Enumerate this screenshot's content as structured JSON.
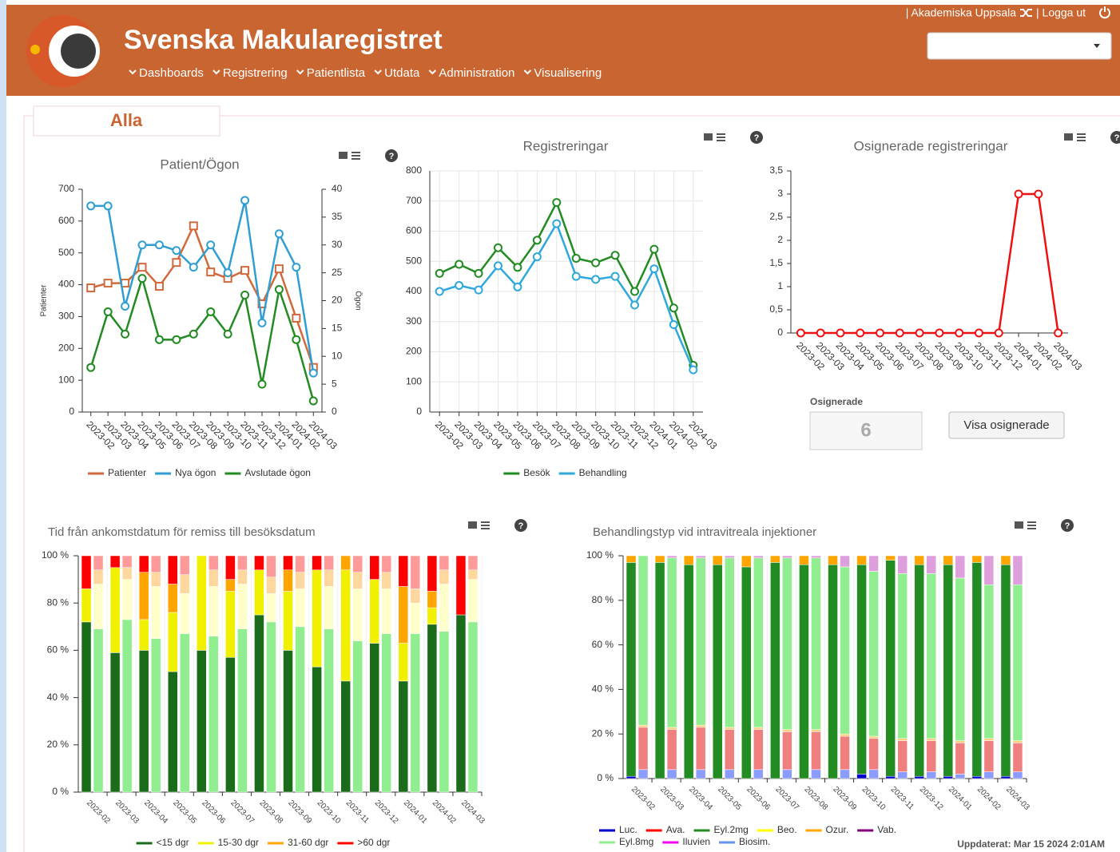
{
  "header": {
    "title": "Svenska Makularegistret",
    "org": "| Akademiska Uppsala",
    "logout": "| Logga ut",
    "nav": [
      "Dashboards",
      "Registrering",
      "Patientlista",
      "Utdata",
      "Administration",
      "Visualisering"
    ]
  },
  "panel": {
    "title": "Alla"
  },
  "help_icon": "?",
  "osignerade": {
    "label": "Osignerade",
    "value": 6,
    "button": "Visa osignerade"
  },
  "updated": "Uppdaterat: Mar 15 2024 2:01AM",
  "chart_data": [
    {
      "type": "line",
      "title": "Patient/Ögon",
      "y_label": "Patienter",
      "y2_label": "Ögon",
      "categories": [
        "2023-02",
        "2023-03",
        "2023-04",
        "2023-05",
        "2023-06",
        "2023-07",
        "2023-08",
        "2023-09",
        "2023-10",
        "2023-11",
        "2023-12",
        "2024-01",
        "2024-02",
        "2024-03"
      ],
      "ylim": [
        0,
        700
      ],
      "yticks": [
        0,
        100,
        200,
        300,
        400,
        500,
        600,
        700
      ],
      "y2lim": [
        0,
        40
      ],
      "y2ticks": [
        0,
        5,
        10,
        15,
        20,
        25,
        30,
        35,
        40
      ],
      "grid": false,
      "series": [
        {
          "name": "Patienter",
          "color": "#d2693c",
          "marker": "square",
          "values": [
            390,
            405,
            405,
            455,
            395,
            470,
            585,
            440,
            420,
            445,
            340,
            450,
            295,
            140
          ]
        },
        {
          "name": "Nya ögon",
          "color": "#2f9fd3",
          "marker": "circle",
          "axis": "y2",
          "values": [
            37,
            37,
            19,
            30,
            30,
            29,
            26,
            30,
            25,
            38,
            16,
            32,
            26,
            7
          ]
        },
        {
          "name": "Avslutade ögon",
          "color": "#228b22",
          "marker": "circle",
          "axis": "y2",
          "values": [
            8,
            18,
            14,
            24,
            13,
            13,
            14,
            18,
            14,
            21,
            5,
            22,
            13,
            2
          ]
        }
      ]
    },
    {
      "type": "line",
      "title": "Registreringar",
      "categories": [
        "2023-02",
        "2023-03",
        "2023-04",
        "2023-05",
        "2023-06",
        "2023-07",
        "2023-08",
        "2023-09",
        "2023-10",
        "2023-11",
        "2023-12",
        "2024-01",
        "2024-02",
        "2024-03"
      ],
      "ylim": [
        0,
        800
      ],
      "yticks": [
        0,
        100,
        200,
        300,
        400,
        500,
        600,
        700,
        800
      ],
      "grid": true,
      "series": [
        {
          "name": "Besök",
          "color": "#228b22",
          "marker": "circle",
          "values": [
            460,
            490,
            460,
            545,
            480,
            570,
            695,
            510,
            495,
            520,
            400,
            540,
            345,
            155
          ]
        },
        {
          "name": "Behandling",
          "color": "#2fa8dc",
          "marker": "circle",
          "values": [
            400,
            420,
            405,
            485,
            415,
            515,
            625,
            450,
            440,
            450,
            355,
            475,
            290,
            140
          ]
        }
      ]
    },
    {
      "type": "line",
      "title": "Osignerade registreringar",
      "categories": [
        "2023-02",
        "2023-03",
        "2023-04",
        "2023-05",
        "2023-06",
        "2023-07",
        "2023-08",
        "2023-09",
        "2023-10",
        "2023-11",
        "2023-12",
        "2024-01",
        "2024-02",
        "2024-03"
      ],
      "ylim": [
        0,
        3.5
      ],
      "yticks": [
        0,
        {
          "value": 0.5,
          "label": "0,5"
        },
        1,
        {
          "value": 1.5,
          "label": "1,5"
        },
        2,
        {
          "value": 2.5,
          "label": "2,5"
        },
        3,
        {
          "value": 3.5,
          "label": "3,5"
        }
      ],
      "grid": false,
      "series": [
        {
          "color": "#ee1111",
          "marker": "circle",
          "values": [
            0,
            0,
            0,
            0,
            0,
            0,
            0,
            0,
            0,
            0,
            0,
            3,
            3,
            0
          ]
        }
      ]
    },
    {
      "type": "stacked_bar",
      "title": "Tid från ankomstdatum för remiss till besöksdatum",
      "categories": [
        "2023-02",
        "2023-03",
        "2023-04",
        "2023-05",
        "2023-06",
        "2023-07",
        "2023-08",
        "2023-09",
        "2023-10",
        "2023-11",
        "2023-12",
        "2024-01",
        "2024-02",
        "2024-03"
      ],
      "ylim": [
        0,
        100
      ],
      "yticks": [
        {
          "value": 0,
          "label": "0 %"
        },
        {
          "value": 20,
          "label": "20 %"
        },
        {
          "value": 40,
          "label": "40 %"
        },
        {
          "value": 60,
          "label": "60 %"
        },
        {
          "value": 80,
          "label": "80 %"
        },
        {
          "value": 100,
          "label": "100 %"
        }
      ],
      "grid": false,
      "series": [
        {
          "name": "<15 dgr",
          "color": "#1a6b1a",
          "color2": "#90ee90",
          "values": [
            72,
            59,
            60,
            51,
            60,
            57,
            75,
            60,
            53,
            47,
            63,
            47,
            71,
            75
          ],
          "values2": [
            69,
            73,
            65,
            67,
            66,
            69,
            72,
            70,
            69,
            64,
            67,
            67,
            68,
            72
          ]
        },
        {
          "name": "15-30 dgr",
          "color": "#f0f000",
          "color2": "#ffffcc",
          "values": [
            14,
            36,
            13,
            25,
            40,
            28,
            19,
            25,
            41,
            47,
            27,
            16,
            7,
            0
          ],
          "values2": [
            19,
            17,
            22,
            17,
            21,
            19,
            12,
            16,
            18,
            22,
            19,
            13,
            20,
            18
          ]
        },
        {
          "name": "31-60 dgr",
          "color": "#ffa500",
          "color2": "#ffd8a0",
          "values": [
            0,
            0,
            20,
            12,
            0,
            5,
            0,
            9,
            0,
            6,
            0,
            24,
            7,
            0
          ],
          "values2": [
            6,
            5,
            6,
            8,
            7,
            6,
            7,
            7,
            7,
            7,
            7,
            6,
            6,
            4
          ]
        },
        {
          "name": ">60 dgr",
          "color": "#ff0000",
          "color2": "#ff9a9a",
          "values": [
            14,
            5,
            7,
            12,
            0,
            10,
            6,
            6,
            6,
            0,
            10,
            13,
            15,
            25
          ],
          "values2": [
            6,
            5,
            7,
            8,
            6,
            6,
            9,
            7,
            6,
            7,
            7,
            14,
            6,
            6
          ]
        }
      ]
    },
    {
      "type": "stacked_bar",
      "title": "Behandlingstyp vid intravitreala injektioner",
      "categories": [
        "2023-02",
        "2023-03",
        "2023-04",
        "2023-05",
        "2023-06",
        "2023-07",
        "2023-08",
        "2023-09",
        "2023-10",
        "2023-11",
        "2023-12",
        "2024-01",
        "2024-02",
        "2024-03"
      ],
      "ylim": [
        0,
        100
      ],
      "yticks": [
        {
          "value": 0,
          "label": "0 %"
        },
        {
          "value": 20,
          "label": "20 %"
        },
        {
          "value": 40,
          "label": "40 %"
        },
        {
          "value": 60,
          "label": "60 %"
        },
        {
          "value": 80,
          "label": "80 %"
        },
        {
          "value": 100,
          "label": "100 %"
        }
      ],
      "grid": false,
      "series": [
        {
          "name": "Luc.",
          "color": "#0000cd",
          "color2": "#8080ff",
          "values": [
            1,
            0,
            0,
            0,
            0,
            0,
            0,
            0,
            2,
            1,
            1,
            1,
            1,
            1
          ],
          "values2": [
            0,
            0,
            0,
            0,
            0,
            0,
            0,
            0,
            0,
            0,
            0,
            0,
            0,
            0
          ]
        },
        {
          "name": "Ava.",
          "color": "#ff0000",
          "color2": "#f08080",
          "values": [
            0,
            0,
            0,
            0,
            0,
            0,
            0,
            0,
            0,
            0,
            0,
            0,
            0,
            0
          ],
          "values2": [
            19,
            18,
            19,
            18,
            18,
            17,
            17,
            15,
            14,
            14,
            14,
            14,
            14,
            13
          ]
        },
        {
          "name": "Eyl.2mg",
          "color": "#228b22",
          "color2": "#90ee90",
          "values": [
            96,
            97,
            96,
            96,
            95,
            97,
            96,
            96,
            94,
            97,
            95,
            95,
            96,
            95
          ],
          "values2": [
            0,
            0,
            0,
            0,
            0,
            0,
            0,
            0,
            0,
            0,
            0,
            0,
            0,
            0
          ]
        },
        {
          "name": "Beo.",
          "color": "#ffff00",
          "color2": "#ffffaa",
          "values": [
            0,
            0,
            0,
            0,
            0,
            0,
            0,
            0,
            0,
            0,
            0,
            0,
            0,
            0
          ],
          "values2": [
            0,
            0,
            0,
            0,
            0,
            0,
            0,
            0,
            0,
            0,
            0,
            0,
            0,
            0
          ]
        },
        {
          "name": "Ozur.",
          "color": "#ffa500",
          "color2": "#ffcf80",
          "values": [
            3,
            3,
            4,
            4,
            5,
            3,
            4,
            4,
            4,
            2,
            4,
            4,
            3,
            4
          ],
          "values2": [
            1,
            1,
            1,
            1,
            1,
            1,
            1,
            1,
            1,
            1,
            1,
            1,
            1,
            1
          ]
        },
        {
          "name": "Vab.",
          "color": "#800080",
          "color2": "#c080c0",
          "values": [
            0,
            0,
            0,
            0,
            0,
            0,
            0,
            0,
            0,
            0,
            0,
            0,
            0,
            0
          ],
          "values2": [
            0,
            0,
            0,
            0,
            0,
            0,
            0,
            0,
            0,
            0,
            0,
            0,
            0,
            0
          ]
        },
        {
          "name": "Eyl.8mg",
          "color": "#90ee90",
          "color2": "#90ee90",
          "values": [
            0,
            0,
            0,
            0,
            0,
            0,
            0,
            0,
            0,
            0,
            0,
            0,
            0,
            0
          ],
          "values2": [
            76,
            76,
            75,
            76,
            76,
            77,
            77,
            75,
            74,
            74,
            74,
            73,
            69,
            70
          ]
        },
        {
          "name": "Iluvien",
          "color": "#ee00ee",
          "color2": "#dda0dd",
          "values": [
            0,
            0,
            0,
            0,
            0,
            0,
            0,
            0,
            0,
            0,
            0,
            0,
            0,
            0
          ],
          "values2": [
            0,
            1,
            1,
            1,
            1,
            1,
            1,
            5,
            7,
            8,
            8,
            10,
            13,
            13
          ]
        },
        {
          "name": "Biosim.",
          "color": "#6495ed",
          "color2": "#8a9cff",
          "values": [
            0,
            0,
            0,
            0,
            0,
            0,
            0,
            0,
            0,
            0,
            0,
            0,
            0,
            0
          ],
          "values2": [
            4,
            4,
            4,
            4,
            4,
            4,
            4,
            4,
            4,
            3,
            3,
            2,
            3,
            3
          ]
        }
      ]
    }
  ]
}
